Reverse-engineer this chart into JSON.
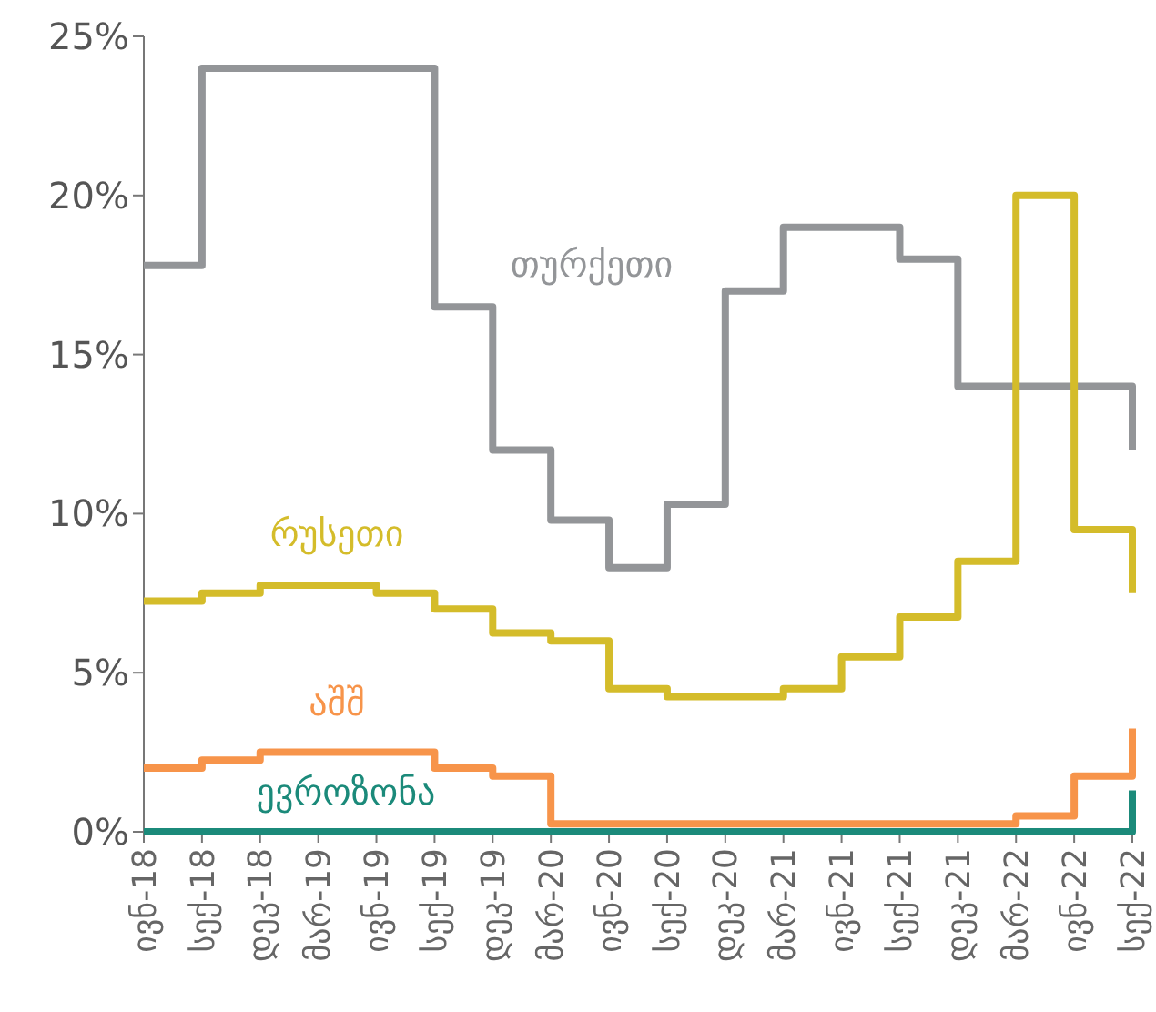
{
  "chart_data": {
    "type": "step",
    "categories": [
      "ივნ-18",
      "სექ-18",
      "დეკ-18",
      "მარ-19",
      "ივნ-19",
      "სექ-19",
      "დეკ-19",
      "მარ-20",
      "ივნ-20",
      "სექ-20",
      "დეკ-20",
      "მარ-21",
      "ივნ-21",
      "სექ-21",
      "დეკ-21",
      "მარ-22",
      "ივნ-22",
      "სექ-22"
    ],
    "series": [
      {
        "name": "თურქეთი",
        "color": "#939598",
        "values": [
          17.8,
          24,
          24,
          24,
          24,
          16.5,
          12,
          9.8,
          8.3,
          10.3,
          17,
          19,
          19,
          18,
          14,
          14,
          14,
          12
        ]
      },
      {
        "name": "რუსეთი",
        "color": "#d4bc2a",
        "values": [
          7.25,
          7.5,
          7.75,
          7.75,
          7.5,
          7,
          6.25,
          6,
          4.5,
          4.25,
          4.25,
          4.5,
          5.5,
          6.75,
          8.5,
          20,
          9.5,
          7.5
        ]
      },
      {
        "name": "აშშ",
        "color": "#f7944a",
        "values": [
          2,
          2.25,
          2.5,
          2.5,
          2.5,
          2,
          1.75,
          0.25,
          0.25,
          0.25,
          0.25,
          0.25,
          0.25,
          0.25,
          0.25,
          0.5,
          1.75,
          3.25
        ]
      },
      {
        "name": "ევროზონა",
        "color": "#1b8a7a",
        "values": [
          0,
          0,
          0,
          0,
          0,
          0,
          0,
          0,
          0,
          0,
          0,
          0,
          0,
          0,
          0,
          0,
          0,
          1.3
        ]
      }
    ],
    "ylim": [
      0,
      25
    ],
    "yticks": [
      {
        "value": 0,
        "label": "0%"
      },
      {
        "value": 5,
        "label": "5%"
      },
      {
        "value": 10,
        "label": "10%"
      },
      {
        "value": 15,
        "label": "15%"
      },
      {
        "value": 20,
        "label": "20%"
      },
      {
        "value": 25,
        "label": "25%"
      }
    ],
    "legend": false,
    "grid": false,
    "line_style": "solid"
  }
}
